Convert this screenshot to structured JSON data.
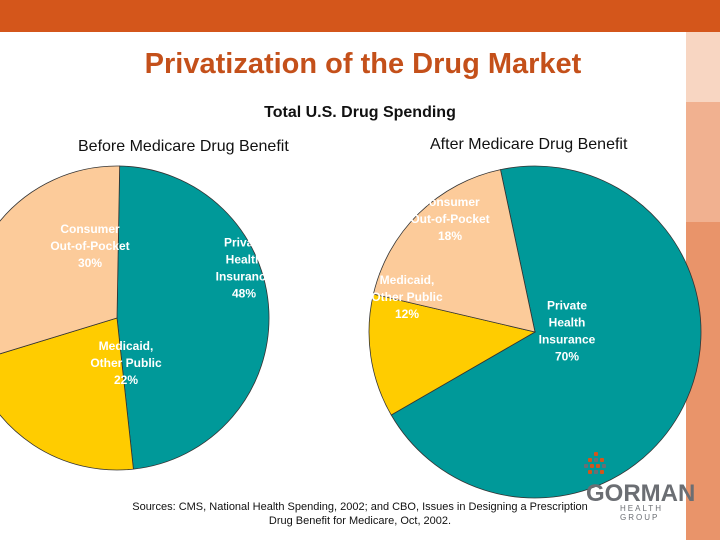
{
  "title": "Privatization of the Drug Market",
  "subtitle": "Total U.S. Drug Spending",
  "chart_data": [
    {
      "type": "pie",
      "title": "Before Medicare Drug Benefit",
      "slices": [
        {
          "lines": [
            "Private",
            "Health",
            "Insurance",
            "48%"
          ],
          "value": 48,
          "color": "#009999"
        },
        {
          "lines": [
            "Medicaid,",
            "Other Public",
            "22%"
          ],
          "value": 22,
          "color": "#ffcc00"
        },
        {
          "lines": [
            "Consumer",
            "Out-of-Pocket",
            "30%"
          ],
          "value": 30,
          "color": "#fccb9a"
        }
      ]
    },
    {
      "type": "pie",
      "title": "After Medicare Drug Benefit",
      "slices": [
        {
          "lines": [
            "Private",
            "Health",
            "Insurance",
            "70%"
          ],
          "value": 70,
          "color": "#009999"
        },
        {
          "lines": [
            "Medicaid,",
            "Other Public",
            "12%"
          ],
          "value": 12,
          "color": "#ffcc00"
        },
        {
          "lines": [
            "Consumer",
            "Out-of-Pocket",
            "18%"
          ],
          "value": 18,
          "color": "#fccb9a"
        }
      ]
    }
  ],
  "sources": {
    "line1": "Sources:  CMS, National Health Spending, 2002; and CBO, Issues in Designing a Prescription",
    "line2": "Drug Benefit for Medicare, Oct, 2002."
  },
  "logo": {
    "wordmark": "GORMAN",
    "tagline": "HEALTH GROUP",
    "colors": {
      "orange": "#d4561b",
      "gray": "#6b6e73"
    }
  }
}
